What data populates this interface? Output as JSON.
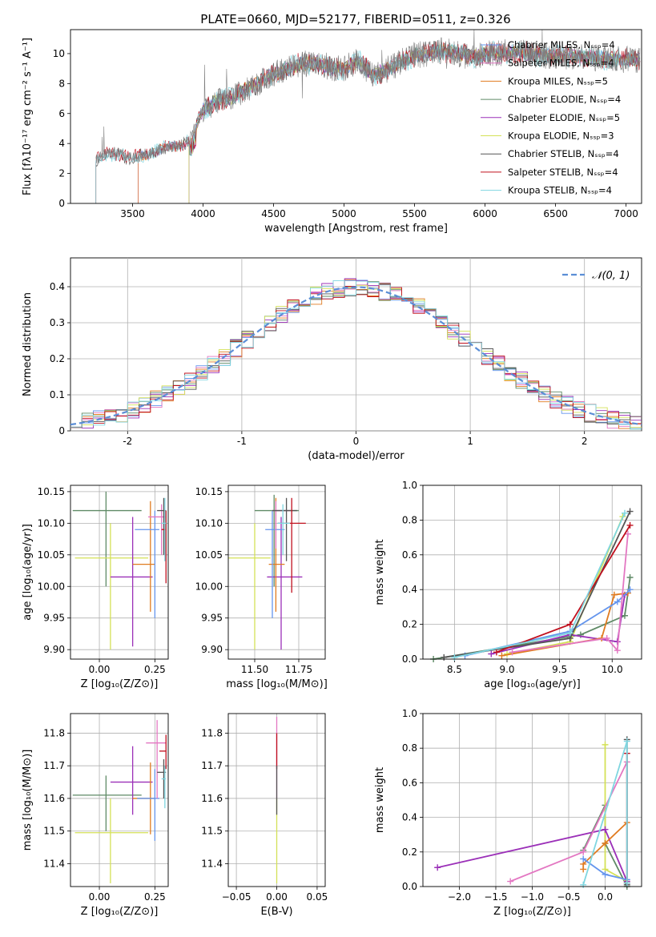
{
  "figure_title": "PLATE=0660, MJD=52177, FIBERID=0511, z=0.326",
  "chart_data": [
    {
      "id": "spectrum",
      "type": "line",
      "xlabel": "wavelength [Angstrom, rest frame]",
      "ylabel": "Flux [fλ10⁻¹⁷ erg cm⁻² s⁻¹ A⁻¹]",
      "xlim": [
        3060,
        7110
      ],
      "ylim": [
        0,
        11.6
      ],
      "xticks": [
        3500,
        4000,
        4500,
        5000,
        5500,
        6000,
        6500,
        7000
      ],
      "yticks": [
        0,
        2,
        4,
        6,
        8,
        10
      ],
      "grid": false,
      "legend_position": "top-right",
      "continuum": {
        "x": [
          3240,
          3300,
          3400,
          3500,
          3600,
          3700,
          3800,
          3900,
          4000,
          4100,
          4200,
          4300,
          4400,
          4500,
          4600,
          4700,
          4800,
          4900,
          5000,
          5100,
          5200,
          5300,
          5400,
          5500,
          5600,
          5700,
          5800,
          5900,
          6000,
          6200,
          6400,
          6600,
          6800,
          7000,
          7100
        ],
        "y": [
          2.9,
          3.2,
          3.4,
          3.0,
          3.3,
          3.6,
          3.8,
          4.2,
          6.2,
          6.9,
          7.0,
          7.6,
          8.1,
          8.6,
          9.0,
          9.3,
          9.4,
          9.0,
          9.0,
          9.5,
          8.6,
          8.9,
          9.4,
          9.9,
          10.0,
          10.2,
          10.0,
          9.8,
          10.0,
          10.1,
          9.9,
          9.8,
          9.7,
          9.6,
          9.6
        ]
      },
      "series": [
        {
          "name": "Chabrier MILES, Nₛₛₚ=4",
          "color": "#6495ED",
          "start": 3540
        },
        {
          "name": "Salpeter MILES, Nₛₛₚ=4",
          "color": "#E377C2",
          "start": 3540
        },
        {
          "name": "Kroupa MILES, Nₛₛₚ=5",
          "color": "#E07B20",
          "start": 3540
        },
        {
          "name": "Chabrier ELODIE, Nₛₛₚ=4",
          "color": "#5F8A66",
          "start": 3900
        },
        {
          "name": "Salpeter ELODIE, Nₛₛₚ=5",
          "color": "#9B30B8",
          "start": 3900
        },
        {
          "name": "Kroupa ELODIE, Nₛₛₚ=3",
          "color": "#D4E157",
          "start": 3900
        },
        {
          "name": "Chabrier STELIB, Nₛₛₚ=4",
          "color": "#555555",
          "start": 3240
        },
        {
          "name": "Salpeter STELIB, Nₛₛₚ=4",
          "color": "#C0101E",
          "start": 3240
        },
        {
          "name": "Kroupa STELIB, Nₛₛₚ=4",
          "color": "#7FD6E0",
          "start": 3240
        }
      ]
    },
    {
      "id": "residuals",
      "type": "histogram",
      "xlabel": "(data-model)/error",
      "ylabel": "Normed distribution",
      "xlim": [
        -2.5,
        2.5
      ],
      "ylim": [
        0,
        0.48
      ],
      "xticks": [
        -2,
        -1,
        0,
        1,
        2
      ],
      "yticks": [
        0.0,
        0.1,
        0.2,
        0.3,
        0.4
      ],
      "grid": true,
      "legend_position": "top-right",
      "reference_label": "𝒩(0, 1)",
      "reference_color": "#5B8ED6"
    },
    {
      "id": "age_vs_Z",
      "type": "errorbar",
      "xlabel": "Z [log₁₀(Z/Z⊙)]",
      "ylabel": "age  [log₁₀(age/yr)]",
      "xlim": [
        -0.13,
        0.31
      ],
      "ylim": [
        9.885,
        10.16
      ],
      "xticks": [
        "0.00",
        "0.25"
      ],
      "yticks": [
        "9.90",
        "9.95",
        "10.00",
        "10.05",
        "10.10",
        "10.15"
      ],
      "grid": true,
      "points": [
        {
          "x": 0.03,
          "xlo": -0.12,
          "xhi": 0.19,
          "y": 10.12,
          "ylo": 10.0,
          "yhi": 10.15,
          "color": "#5F8A66"
        },
        {
          "x": 0.05,
          "xlo": -0.11,
          "xhi": 0.22,
          "y": 10.045,
          "ylo": 9.9,
          "yhi": 10.1,
          "color": "#D4E157"
        },
        {
          "x": 0.15,
          "xlo": 0.05,
          "xhi": 0.24,
          "y": 10.015,
          "ylo": 9.905,
          "yhi": 10.11,
          "color": "#9B30B8"
        },
        {
          "x": 0.23,
          "xlo": 0.15,
          "xhi": 0.25,
          "y": 10.035,
          "ylo": 9.96,
          "yhi": 10.135,
          "color": "#E07B20"
        },
        {
          "x": 0.25,
          "xlo": 0.16,
          "xhi": 0.27,
          "y": 10.09,
          "ylo": 9.95,
          "yhi": 10.12,
          "color": "#6495ED"
        },
        {
          "x": 0.28,
          "xlo": 0.22,
          "xhi": 0.3,
          "y": 10.11,
          "ylo": 10.05,
          "yhi": 10.13,
          "color": "#E377C2"
        },
        {
          "x": 0.29,
          "xlo": 0.26,
          "xhi": 0.3,
          "y": 10.12,
          "ylo": 10.05,
          "yhi": 10.14,
          "color": "#555555"
        },
        {
          "x": 0.3,
          "xlo": 0.28,
          "xhi": 0.3,
          "y": 10.09,
          "ylo": 10.005,
          "yhi": 10.12,
          "color": "#C0101E"
        },
        {
          "x": 0.295,
          "xlo": 0.28,
          "xhi": 0.3,
          "y": 10.1,
          "ylo": 10.04,
          "yhi": 10.14,
          "color": "#7FD6E0"
        }
      ]
    },
    {
      "id": "age_vs_mass",
      "type": "errorbar",
      "xlabel": "mass [log₁₀(M/M⊙)]",
      "ylabel": "",
      "xlim": [
        11.35,
        11.9
      ],
      "ylim": [
        9.885,
        10.16
      ],
      "xticks": [
        "11.50",
        "11.75"
      ],
      "yticks": [
        "9.90",
        "9.95",
        "10.00",
        "10.05",
        "10.10",
        "10.15"
      ],
      "grid": true,
      "points": [
        {
          "x": 11.61,
          "xlo": 11.5,
          "xhi": 11.75,
          "y": 10.12,
          "ylo": 10.0,
          "yhi": 10.145,
          "color": "#5F8A66"
        },
        {
          "x": 11.5,
          "xlo": 11.33,
          "xhi": 11.59,
          "y": 10.045,
          "ylo": 9.9,
          "yhi": 10.1,
          "color": "#D4E157"
        },
        {
          "x": 11.65,
          "xlo": 11.57,
          "xhi": 11.77,
          "y": 10.015,
          "ylo": 9.9,
          "yhi": 10.11,
          "color": "#9B30B8"
        },
        {
          "x": 11.62,
          "xlo": 11.58,
          "xhi": 11.67,
          "y": 10.035,
          "ylo": 9.96,
          "yhi": 10.14,
          "color": "#E07B20"
        },
        {
          "x": 11.6,
          "xlo": 11.56,
          "xhi": 11.67,
          "y": 10.09,
          "ylo": 9.95,
          "yhi": 10.12,
          "color": "#6495ED"
        },
        {
          "x": 11.62,
          "xlo": 11.6,
          "xhi": 11.7,
          "y": 10.12,
          "ylo": 10.06,
          "yhi": 10.135,
          "color": "#E377C2"
        },
        {
          "x": 11.68,
          "xlo": 11.6,
          "xhi": 11.74,
          "y": 10.12,
          "ylo": 10.04,
          "yhi": 10.14,
          "color": "#555555"
        },
        {
          "x": 11.71,
          "xlo": 11.63,
          "xhi": 11.79,
          "y": 10.1,
          "ylo": 9.99,
          "yhi": 10.14,
          "color": "#C0101E"
        },
        {
          "x": 11.66,
          "xlo": 11.63,
          "xhi": 11.7,
          "y": 10.1,
          "ylo": 10.05,
          "yhi": 10.13,
          "color": "#7FD6E0"
        }
      ]
    },
    {
      "id": "weight_vs_age",
      "type": "line",
      "xlabel": "age  [log₁₀(age/yr)]",
      "ylabel": "mass weight",
      "xlim": [
        8.2,
        10.28
      ],
      "ylim": [
        0,
        1.0
      ],
      "xticks": [
        "8.5",
        "9.0",
        "9.5",
        "10.0"
      ],
      "yticks": [
        "0.0",
        "0.2",
        "0.4",
        "0.6",
        "0.8",
        "1.0"
      ],
      "grid": true,
      "series": [
        {
          "color": "#5F8A66",
          "points": [
            [
              8.3,
              0.0
            ],
            [
              9.7,
              0.14
            ],
            [
              10.12,
              0.25
            ],
            [
              10.17,
              0.47
            ]
          ]
        },
        {
          "color": "#D4E157",
          "points": [
            [
              9.0,
              0.03
            ],
            [
              9.6,
              0.1
            ],
            [
              10.1,
              0.82
            ]
          ]
        },
        {
          "color": "#9B30B8",
          "points": [
            [
              8.85,
              0.03
            ],
            [
              9.6,
              0.14
            ],
            [
              10.05,
              0.1
            ],
            [
              10.12,
              0.37
            ]
          ]
        },
        {
          "color": "#E07B20",
          "points": [
            [
              8.95,
              0.02
            ],
            [
              9.9,
              0.12
            ],
            [
              10.02,
              0.37
            ],
            [
              10.15,
              0.38
            ]
          ]
        },
        {
          "color": "#6495ED",
          "points": [
            [
              8.6,
              0.02
            ],
            [
              9.6,
              0.16
            ],
            [
              10.05,
              0.33
            ],
            [
              10.17,
              0.4
            ]
          ]
        },
        {
          "color": "#E377C2",
          "points": [
            [
              9.05,
              0.04
            ],
            [
              9.95,
              0.12
            ],
            [
              10.05,
              0.05
            ],
            [
              10.15,
              0.72
            ]
          ]
        },
        {
          "color": "#555555",
          "points": [
            [
              8.4,
              0.01
            ],
            [
              9.6,
              0.12
            ],
            [
              10.17,
              0.85
            ]
          ]
        },
        {
          "color": "#C0101E",
          "points": [
            [
              8.9,
              0.04
            ],
            [
              9.6,
              0.2
            ],
            [
              10.17,
              0.77
            ]
          ]
        },
        {
          "color": "#7FD6E0",
          "points": [
            [
              8.5,
              0.01
            ],
            [
              9.6,
              0.15
            ],
            [
              10.12,
              0.84
            ]
          ]
        }
      ]
    },
    {
      "id": "mass_vs_Z",
      "type": "errorbar",
      "xlabel": "Z [log₁₀(Z/Z⊙)]",
      "ylabel": "mass [log₁₀(M/M⊙)]",
      "xlim": [
        -0.13,
        0.31
      ],
      "ylim": [
        11.33,
        11.86
      ],
      "xticks": [
        "0.00",
        "0.25"
      ],
      "yticks": [
        "11.4",
        "11.5",
        "11.6",
        "11.7",
        "11.8"
      ],
      "grid": true,
      "points": [
        {
          "x": 0.03,
          "xlo": -0.12,
          "xhi": 0.19,
          "y": 11.61,
          "ylo": 11.5,
          "yhi": 11.67,
          "color": "#5F8A66"
        },
        {
          "x": 0.05,
          "xlo": -0.11,
          "xhi": 0.22,
          "y": 11.495,
          "ylo": 11.34,
          "yhi": 11.6,
          "color": "#D4E157"
        },
        {
          "x": 0.15,
          "xlo": 0.05,
          "xhi": 0.24,
          "y": 11.65,
          "ylo": 11.55,
          "yhi": 11.76,
          "color": "#9B30B8"
        },
        {
          "x": 0.23,
          "xlo": 0.15,
          "xhi": 0.25,
          "y": 11.6,
          "ylo": 11.49,
          "yhi": 11.71,
          "color": "#E07B20"
        },
        {
          "x": 0.25,
          "xlo": 0.17,
          "xhi": 0.27,
          "y": 11.6,
          "ylo": 11.47,
          "yhi": 11.69,
          "color": "#6495ED"
        },
        {
          "x": 0.26,
          "xlo": 0.21,
          "xhi": 0.3,
          "y": 11.77,
          "ylo": 11.6,
          "yhi": 11.84,
          "color": "#E377C2"
        },
        {
          "x": 0.29,
          "xlo": 0.26,
          "xhi": 0.3,
          "y": 11.68,
          "ylo": 11.6,
          "yhi": 11.72,
          "color": "#555555"
        },
        {
          "x": 0.3,
          "xlo": 0.27,
          "xhi": 0.3,
          "y": 11.745,
          "ylo": 11.69,
          "yhi": 11.795,
          "color": "#C0101E"
        },
        {
          "x": 0.295,
          "xlo": 0.28,
          "xhi": 0.3,
          "y": 11.66,
          "ylo": 11.57,
          "yhi": 11.7,
          "color": "#7FD6E0"
        }
      ]
    },
    {
      "id": "mass_vs_ebv",
      "type": "errorbar",
      "xlabel": "E(B-V)",
      "ylabel": "",
      "xlim": [
        -0.06,
        0.06
      ],
      "ylim": [
        11.33,
        11.86
      ],
      "xticks": [
        "−0.05",
        "0.00",
        "0.05"
      ],
      "yticks": [
        "11.4",
        "11.5",
        "11.6",
        "11.7",
        "11.8"
      ],
      "grid": true,
      "points": [
        {
          "x": 0.0,
          "xlo": 0.0,
          "xhi": 0.0,
          "y": 11.5,
          "ylo": 11.34,
          "yhi": 11.6,
          "color": "#D4E157"
        },
        {
          "x": 0.0,
          "xlo": 0.0,
          "xhi": 0.0,
          "y": 11.77,
          "ylo": 11.6,
          "yhi": 11.85,
          "color": "#E377C2"
        },
        {
          "x": 0.0,
          "xlo": 0.0,
          "xhi": 0.0,
          "y": 11.74,
          "ylo": 11.69,
          "yhi": 11.8,
          "color": "#C0101E"
        },
        {
          "x": 0.0,
          "xlo": 0.0,
          "xhi": 0.0,
          "y": 11.62,
          "ylo": 11.55,
          "yhi": 11.7,
          "color": "#555555"
        }
      ]
    },
    {
      "id": "weight_vs_Z",
      "type": "line",
      "xlabel": "Z [log₁₀(Z/Z⊙)]",
      "ylabel": "mass weight",
      "xlim": [
        -2.5,
        0.5
      ],
      "ylim": [
        0,
        1.0
      ],
      "xticks": [
        "−2.0",
        "−1.5",
        "−1.0",
        "−0.5",
        "0.0"
      ],
      "yticks": [
        "0.0",
        "0.2",
        "0.4",
        "0.6",
        "0.8",
        "1.0"
      ],
      "grid": true,
      "series": [
        {
          "color": "#5F8A66",
          "points": [
            [
              -0.3,
              0.21
            ],
            [
              0.0,
              0.47
            ],
            [
              0.0,
              0.25
            ],
            [
              0.3,
              0.0
            ]
          ]
        },
        {
          "color": "#D4E157",
          "points": [
            [
              0.0,
              0.82
            ],
            [
              0.0,
              0.1
            ],
            [
              0.3,
              0.03
            ]
          ]
        },
        {
          "color": "#9B30B8",
          "points": [
            [
              -2.3,
              0.11
            ],
            [
              0.0,
              0.33
            ],
            [
              0.3,
              0.03
            ]
          ]
        },
        {
          "color": "#E07B20",
          "points": [
            [
              -0.3,
              0.1
            ],
            [
              -0.3,
              0.13
            ],
            [
              0.0,
              0.25
            ],
            [
              0.3,
              0.37
            ]
          ]
        },
        {
          "color": "#6495ED",
          "points": [
            [
              -0.3,
              0.16
            ],
            [
              0.0,
              0.07
            ],
            [
              0.3,
              0.04
            ]
          ]
        },
        {
          "color": "#E377C2",
          "points": [
            [
              -1.3,
              0.03
            ],
            [
              -0.3,
              0.2
            ],
            [
              0.3,
              0.72
            ]
          ]
        },
        {
          "color": "#555555",
          "points": [
            [
              0.3,
              0.85
            ],
            [
              0.3,
              0.01
            ]
          ]
        },
        {
          "color": "#C0101E",
          "points": [
            [
              0.3,
              0.77
            ],
            [
              0.3,
              0.02
            ]
          ]
        },
        {
          "color": "#7FD6E0",
          "points": [
            [
              -0.3,
              0.01
            ],
            [
              0.3,
              0.84
            ],
            [
              0.3,
              0.02
            ]
          ]
        }
      ]
    }
  ]
}
